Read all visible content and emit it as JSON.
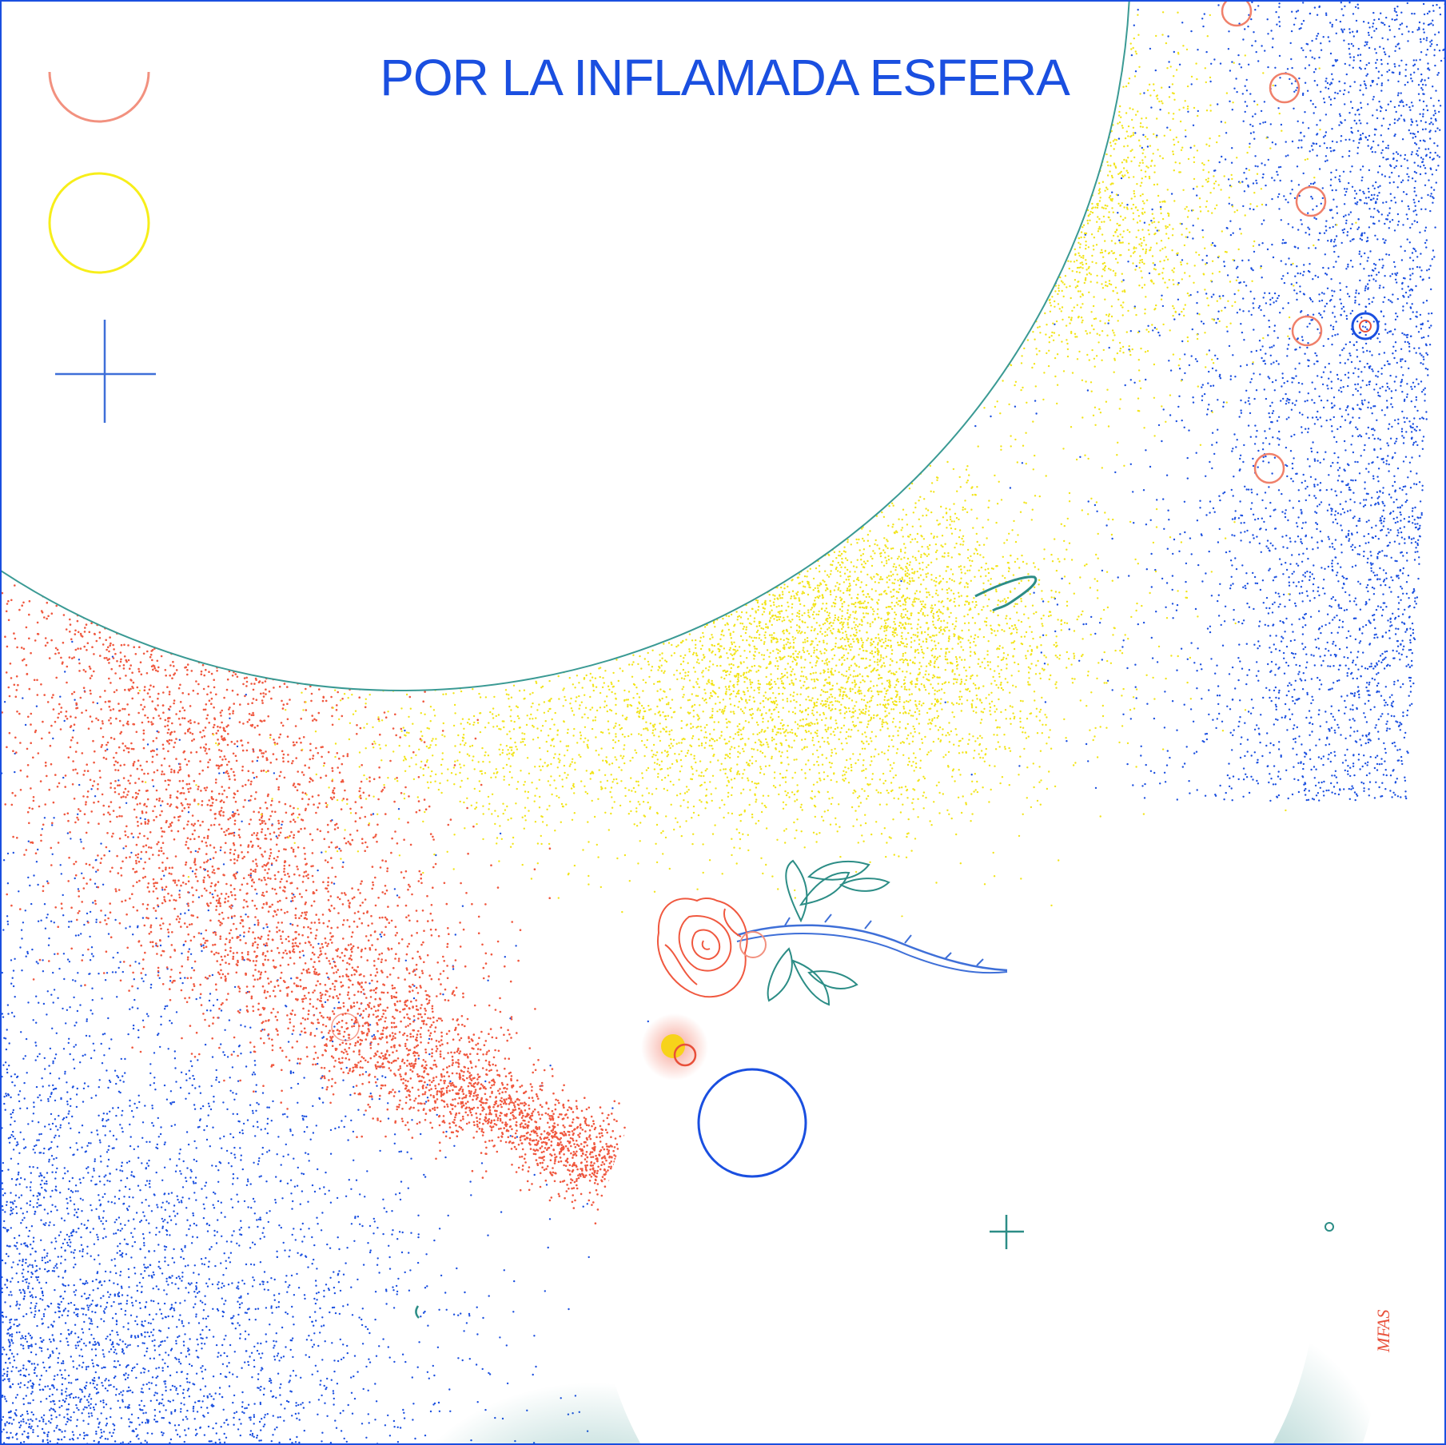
{
  "poster": {
    "title": "POR LA INFLAMADA ESFERA",
    "signature": "MFAS"
  },
  "palette": {
    "blue": "#1a4fe0",
    "coral": "#f0583f",
    "salmon": "#f2917f",
    "yellow": "#f7ee1a",
    "teal": "#2c8d86"
  },
  "icons": [
    "half-circle-icon",
    "circle-icon",
    "crosshair-icon",
    "rose-icon",
    "plus-icon"
  ]
}
